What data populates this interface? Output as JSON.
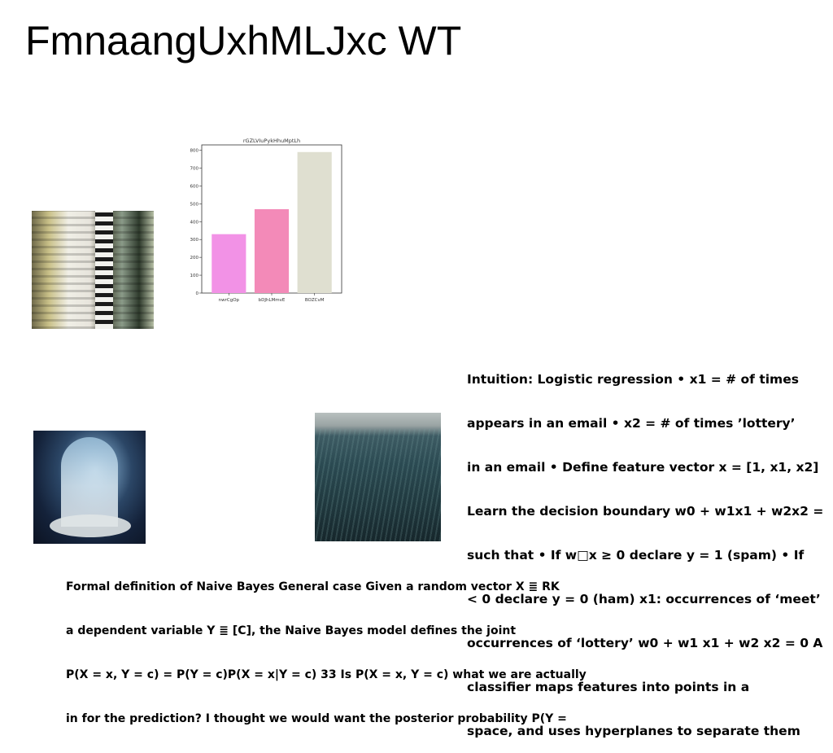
{
  "title": "FmnaangUxhMLJxc WT",
  "photos": [
    {
      "icon": "building-photo"
    },
    {
      "icon": "archway-photo"
    },
    {
      "icon": "grassland-photo"
    }
  ],
  "chart_data": {
    "type": "bar",
    "title": "rGZLVIuPykHhuMptLh",
    "categories": [
      "nwrCgOp",
      "bDJhLMmvE",
      "BOZCvM"
    ],
    "values": [
      330,
      470,
      790
    ],
    "colors": [
      "#f292e6",
      "#f38ab8",
      "#dfdfd0"
    ],
    "yticks": [
      0,
      100,
      200,
      300,
      400,
      500,
      600,
      700,
      800
    ],
    "ylim": [
      0,
      830
    ],
    "grid": false,
    "xlabel": "",
    "ylabel": ""
  },
  "intuition_lines": [
    "Intuition: Logistic regression • x1 = # of times",
    "appears in an email • x2 = # of times ’lottery’",
    "in an email • Define feature vector x = [1, x1, x2]",
    "Learn the decision boundary w0 + w1x1 + w2x2 =",
    "such that • If w□x ≥ 0 declare y = 1 (spam) • If",
    "< 0 declare y = 0 (ham) x1: occurrences of ‘meet’",
    "occurrences of ‘lottery’ w0 + w1 x1 + w2 x2 = 0 A",
    "classifier maps features into points in a",
    "space, and uses hyperplanes to separate them"
  ],
  "formal_lines": [
    "Formal definition of Naive Bayes General case Given a random vector X ≣ RK",
    "a dependent variable Y ≣ [C], the Naive Bayes model defines the joint",
    "P(X = x, Y = c) = P(Y = c)P(X = x|Y = c) 33 Is P(X = x, Y = c) what we are actually",
    "in for the prediction? I thought we would want the posterior probability P(Y ="
  ]
}
